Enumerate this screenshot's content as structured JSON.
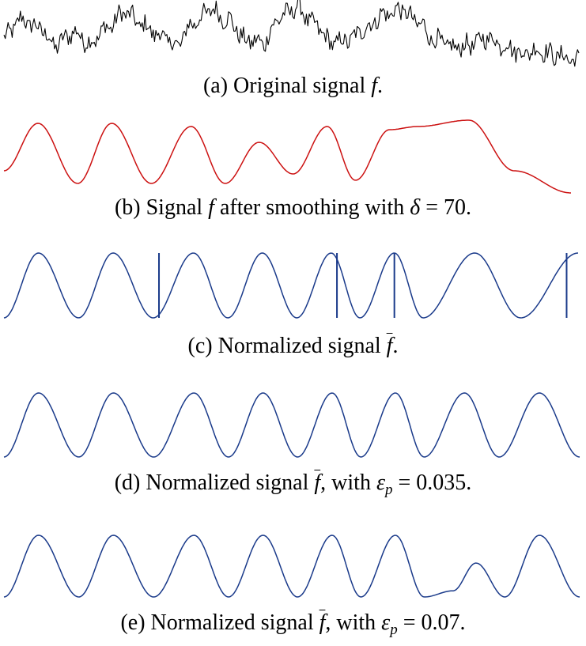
{
  "figure": {
    "panels": [
      {
        "id": "a",
        "caption_pre": "(a) Original signal ",
        "caption_sym": "f",
        "caption_post": ".",
        "color": "#000000",
        "style": "noisy"
      },
      {
        "id": "b",
        "caption_pre": "(b) Signal ",
        "caption_sym": "f",
        "caption_mid": " after smoothing with ",
        "caption_greek": "δ",
        "caption_post": " = 70.",
        "color": "#cc1111",
        "style": "smooth"
      },
      {
        "id": "c",
        "caption_pre": "(c) Normalized signal ",
        "caption_sym": "f",
        "caption_post": ".",
        "color": "#1a3a8a",
        "style": "normalized"
      },
      {
        "id": "d",
        "caption_pre": "(d) Normalized signal ",
        "caption_sym": "f",
        "caption_mid": ", with ",
        "caption_greek": "ε",
        "caption_sub": "p",
        "caption_post": " = 0.035.",
        "color": "#1a3a8a",
        "style": "normalized"
      },
      {
        "id": "e",
        "caption_pre": "(e) Normalized signal ",
        "caption_sym": "f",
        "caption_mid": ", with ",
        "caption_greek": "ε",
        "caption_sub": "p",
        "caption_post": " = 0.07.",
        "color": "#1a3a8a",
        "style": "normalized"
      }
    ]
  },
  "chart_data": [
    {
      "type": "line",
      "title": "",
      "xlabel": "",
      "ylabel": "",
      "axes_visible": false,
      "series": [
        {
          "x": [
            0,
            0.03,
            0.06,
            0.09,
            0.12,
            0.15,
            0.18,
            0.21,
            0.24,
            0.27,
            0.3,
            0.33,
            0.36,
            0.39,
            0.42,
            0.45,
            0.48,
            0.51,
            0.54,
            0.57,
            0.6,
            0.63,
            0.66,
            0.69,
            0.72,
            0.75,
            0.78,
            0.81,
            0.84,
            0.87,
            0.9,
            0.93,
            0.96,
            1.0
          ],
          "y": [
            0.35,
            0.7,
            0.55,
            0.2,
            0.45,
            0.25,
            0.55,
            0.85,
            0.6,
            0.4,
            0.2,
            0.65,
            0.9,
            0.7,
            0.3,
            0.25,
            0.75,
            0.95,
            0.6,
            0.25,
            0.3,
            0.55,
            0.8,
            0.9,
            0.65,
            0.3,
            0.15,
            0.2,
            0.35,
            0.2,
            0.05,
            0.1,
            0.0,
            -0.1
          ]
        }
      ],
      "noise": true
    },
    {
      "type": "line",
      "title": "",
      "xlabel": "",
      "ylabel": "",
      "axes_visible": false,
      "series": [
        {
          "x": [
            0,
            0.06,
            0.13,
            0.19,
            0.26,
            0.33,
            0.39,
            0.45,
            0.51,
            0.57,
            0.62,
            0.68,
            0.73,
            0.82,
            0.9,
            1.0
          ],
          "y": [
            0.2,
            0.95,
            0.0,
            0.95,
            0.0,
            0.9,
            0.0,
            0.65,
            0.15,
            0.9,
            0.05,
            0.85,
            0.9,
            1.0,
            0.2,
            -0.15
          ]
        }
      ]
    },
    {
      "type": "line",
      "title": "",
      "xlabel": "",
      "ylabel": "",
      "axes_visible": false,
      "series": [
        {
          "x": [
            0,
            0.06,
            0.13,
            0.19,
            0.26,
            0.33,
            0.39,
            0.45,
            0.51,
            0.57,
            0.62,
            0.68,
            0.73,
            0.82,
            0.9,
            1.0
          ],
          "y": [
            0.0,
            1.0,
            0.0,
            1.0,
            0.0,
            1.0,
            0.0,
            1.0,
            0.0,
            1.0,
            0.0,
            1.0,
            0.0,
            1.0,
            0.0,
            1.0
          ]
        }
      ],
      "spikes_x": [
        0.27,
        0.58,
        0.68,
        0.98
      ]
    },
    {
      "type": "line",
      "title": "",
      "xlabel": "",
      "ylabel": "",
      "axes_visible": false,
      "series": [
        {
          "x": [
            0,
            0.06,
            0.13,
            0.19,
            0.26,
            0.33,
            0.39,
            0.45,
            0.51,
            0.57,
            0.62,
            0.68,
            0.73,
            0.8,
            0.86,
            0.93,
            1.0
          ],
          "y": [
            0.0,
            1.0,
            0.0,
            1.0,
            0.0,
            1.0,
            0.0,
            1.0,
            0.0,
            1.0,
            0.0,
            1.0,
            0.0,
            1.0,
            0.0,
            1.0,
            0.0
          ]
        }
      ]
    },
    {
      "type": "line",
      "title": "",
      "xlabel": "",
      "ylabel": "",
      "axes_visible": false,
      "series": [
        {
          "x": [
            0,
            0.06,
            0.13,
            0.19,
            0.26,
            0.33,
            0.39,
            0.45,
            0.51,
            0.57,
            0.62,
            0.68,
            0.73,
            0.78,
            0.82,
            0.87,
            0.93,
            1.0
          ],
          "y": [
            0.0,
            1.0,
            0.0,
            1.0,
            0.0,
            1.0,
            0.0,
            1.0,
            0.0,
            1.0,
            0.0,
            1.0,
            0.0,
            0.1,
            0.55,
            0.0,
            1.0,
            0.0
          ]
        }
      ]
    }
  ]
}
